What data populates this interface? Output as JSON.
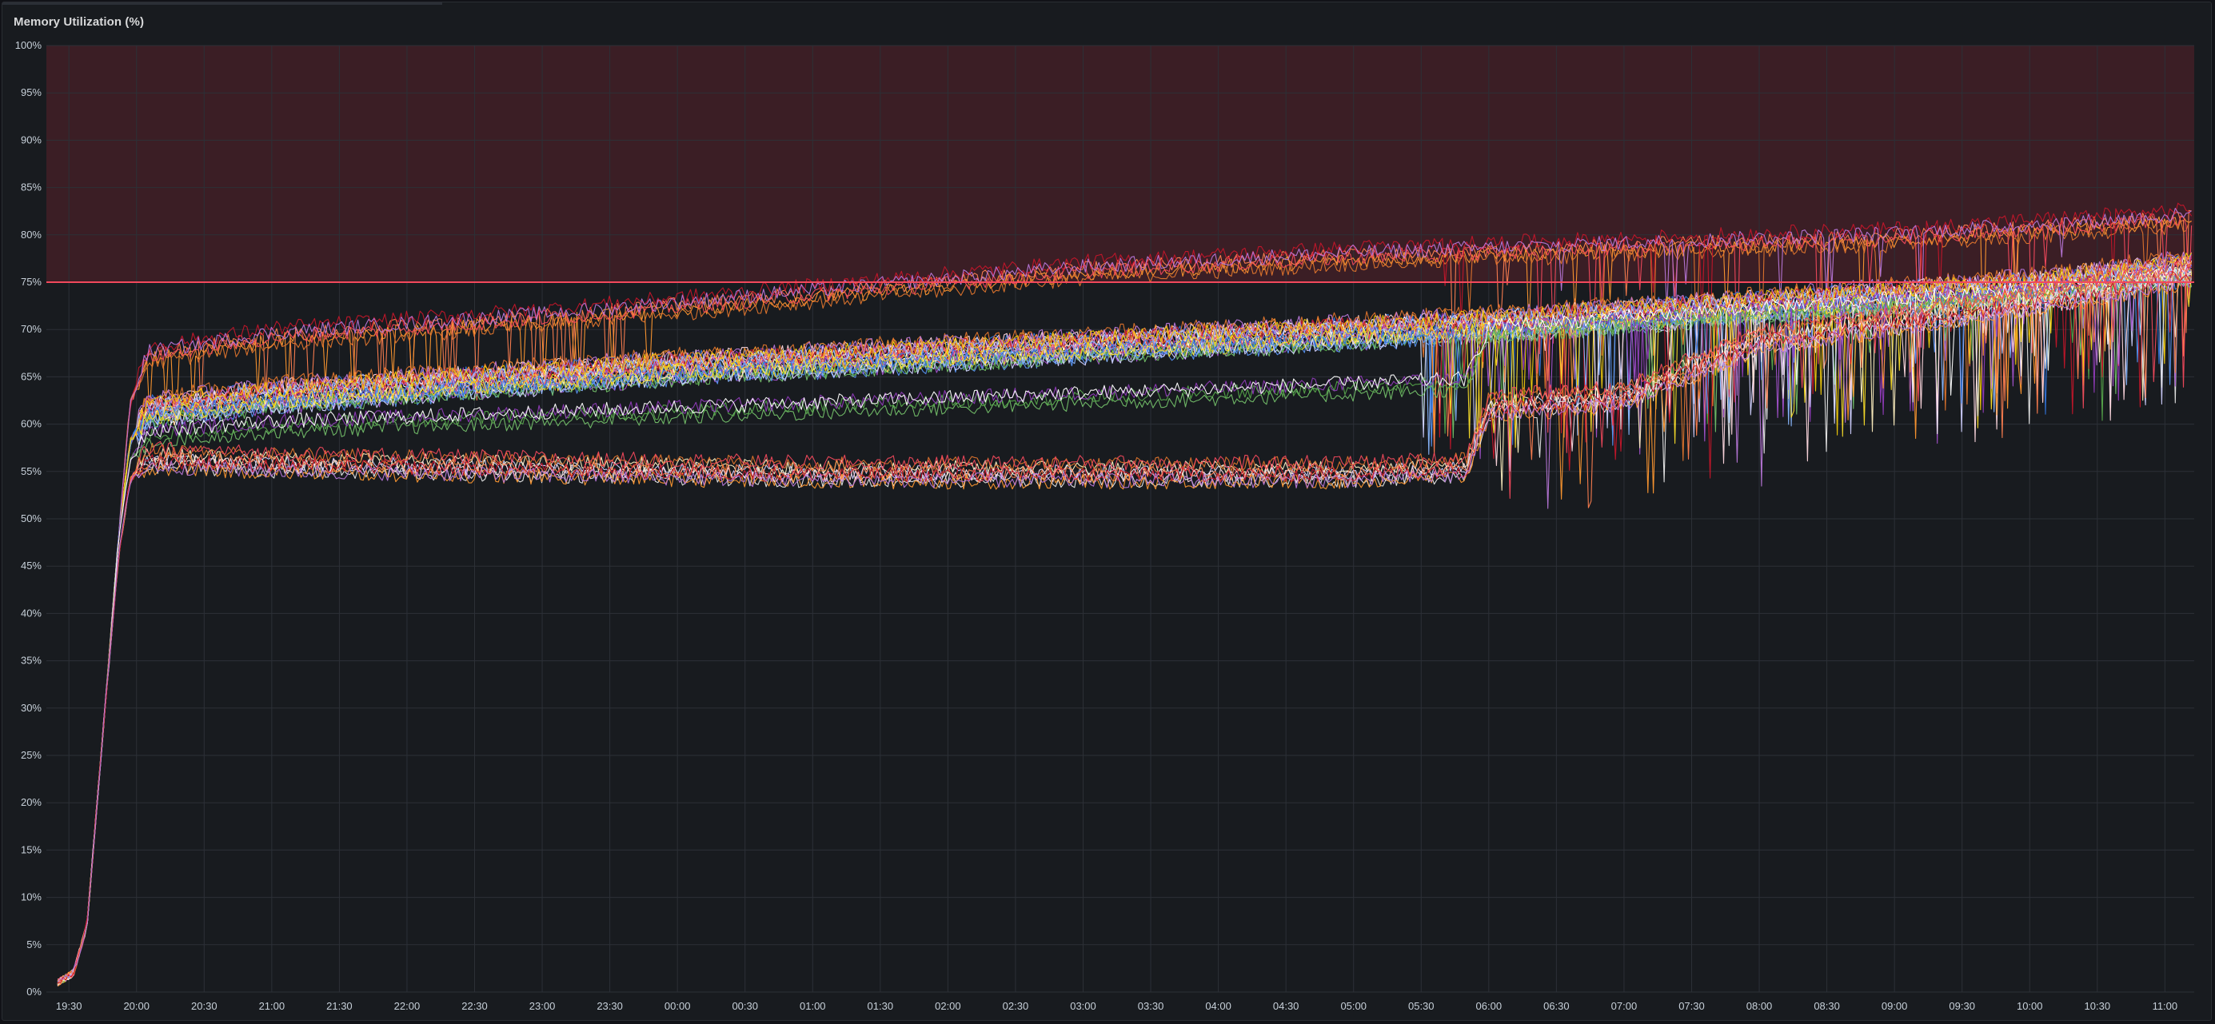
{
  "panel": {
    "title": "Memory Utilization (%)"
  },
  "colors": {
    "background": "#181b1f",
    "grid": "#2c3037",
    "threshold_fill": "#3d1f26",
    "threshold_line": "#f2495c",
    "tick_text": "#c7d0d9",
    "series_palette": [
      "#ff7f50",
      "#ff9830",
      "#e0752d",
      "#f2495c",
      "#c4162a",
      "#b877d9",
      "#a352cc",
      "#8ab8ff",
      "#5794f2",
      "#3274d9",
      "#fade2a",
      "#f2cc0c",
      "#73bf69",
      "#56a64b",
      "#8f3bb8",
      "#ffffff",
      "#e8e8e8",
      "#d0d0ff",
      "#fff0c0",
      "#ffd9e0"
    ]
  },
  "chart_data": {
    "type": "line",
    "title": "Memory Utilization (%)",
    "xlabel": "",
    "ylabel": "",
    "ylim": [
      0,
      100
    ],
    "y_unit": "%",
    "y_ticks": [
      "0%",
      "5%",
      "10%",
      "15%",
      "20%",
      "25%",
      "30%",
      "35%",
      "40%",
      "45%",
      "50%",
      "55%",
      "60%",
      "65%",
      "70%",
      "75%",
      "80%",
      "85%",
      "90%",
      "95%",
      "100%"
    ],
    "x_ticks": [
      "19:30",
      "20:00",
      "20:30",
      "21:00",
      "21:30",
      "22:00",
      "22:30",
      "23:00",
      "23:30",
      "00:00",
      "00:30",
      "01:00",
      "01:30",
      "02:00",
      "02:30",
      "03:00",
      "03:30",
      "04:00",
      "04:30",
      "05:00",
      "05:30",
      "06:00",
      "06:30",
      "07:00",
      "07:30",
      "08:00",
      "08:30",
      "09:00",
      "09:30",
      "10:00",
      "10:30",
      "11:00"
    ],
    "x_range": [
      "19:20",
      "11:13"
    ],
    "grid": true,
    "legend": "none",
    "threshold": {
      "value": 75,
      "fill_above": true
    },
    "series_count": 46,
    "groups": [
      {
        "description": "high",
        "count": 6,
        "anchors": [
          [
            "19:25",
            1
          ],
          [
            "19:32",
            2
          ],
          [
            "19:38",
            7
          ],
          [
            "19:46",
            30
          ],
          [
            "19:52",
            48
          ],
          [
            "19:57",
            62
          ],
          [
            "20:05",
            67
          ],
          [
            "21:00",
            69
          ],
          [
            "23:00",
            71
          ],
          [
            "01:00",
            73.5
          ],
          [
            "03:00",
            76
          ],
          [
            "05:00",
            77.5
          ],
          [
            "07:00",
            78.5
          ],
          [
            "09:00",
            79.5
          ],
          [
            "11:10",
            81.5
          ]
        ]
      },
      {
        "description": "main",
        "count": 26,
        "anchors": [
          [
            "19:25",
            1
          ],
          [
            "19:32",
            2
          ],
          [
            "19:38",
            7
          ],
          [
            "19:46",
            30
          ],
          [
            "19:52",
            48
          ],
          [
            "19:57",
            58
          ],
          [
            "20:05",
            61.5
          ],
          [
            "21:00",
            63
          ],
          [
            "22:00",
            64
          ],
          [
            "00:00",
            66
          ],
          [
            "02:00",
            67.5
          ],
          [
            "04:00",
            69
          ],
          [
            "06:00",
            70.5
          ],
          [
            "08:00",
            72.5
          ],
          [
            "10:00",
            74.5
          ],
          [
            "11:10",
            76.5
          ]
        ]
      },
      {
        "description": "mid",
        "count": 4,
        "anchors": [
          [
            "19:25",
            1
          ],
          [
            "19:32",
            2
          ],
          [
            "19:38",
            7
          ],
          [
            "19:46",
            30
          ],
          [
            "19:52",
            48
          ],
          [
            "19:57",
            56
          ],
          [
            "20:05",
            59
          ],
          [
            "21:00",
            60
          ],
          [
            "23:00",
            61
          ],
          [
            "01:00",
            62
          ],
          [
            "03:00",
            63
          ],
          [
            "05:00",
            64
          ],
          [
            "05:50",
            64.5
          ],
          [
            "06:00",
            70
          ],
          [
            "08:00",
            72
          ],
          [
            "10:00",
            74
          ],
          [
            "11:10",
            76
          ]
        ]
      },
      {
        "description": "low",
        "count": 10,
        "anchors": [
          [
            "19:25",
            1
          ],
          [
            "19:32",
            2
          ],
          [
            "19:38",
            7
          ],
          [
            "19:46",
            30
          ],
          [
            "19:52",
            46
          ],
          [
            "19:57",
            54
          ],
          [
            "20:05",
            56.5
          ],
          [
            "21:00",
            56
          ],
          [
            "23:00",
            55.5
          ],
          [
            "01:00",
            55
          ],
          [
            "03:00",
            55
          ],
          [
            "05:00",
            55
          ],
          [
            "05:50",
            55.5
          ],
          [
            "06:00",
            62
          ],
          [
            "07:00",
            63
          ],
          [
            "08:00",
            69
          ],
          [
            "10:00",
            73
          ],
          [
            "11:10",
            76
          ]
        ]
      }
    ]
  }
}
